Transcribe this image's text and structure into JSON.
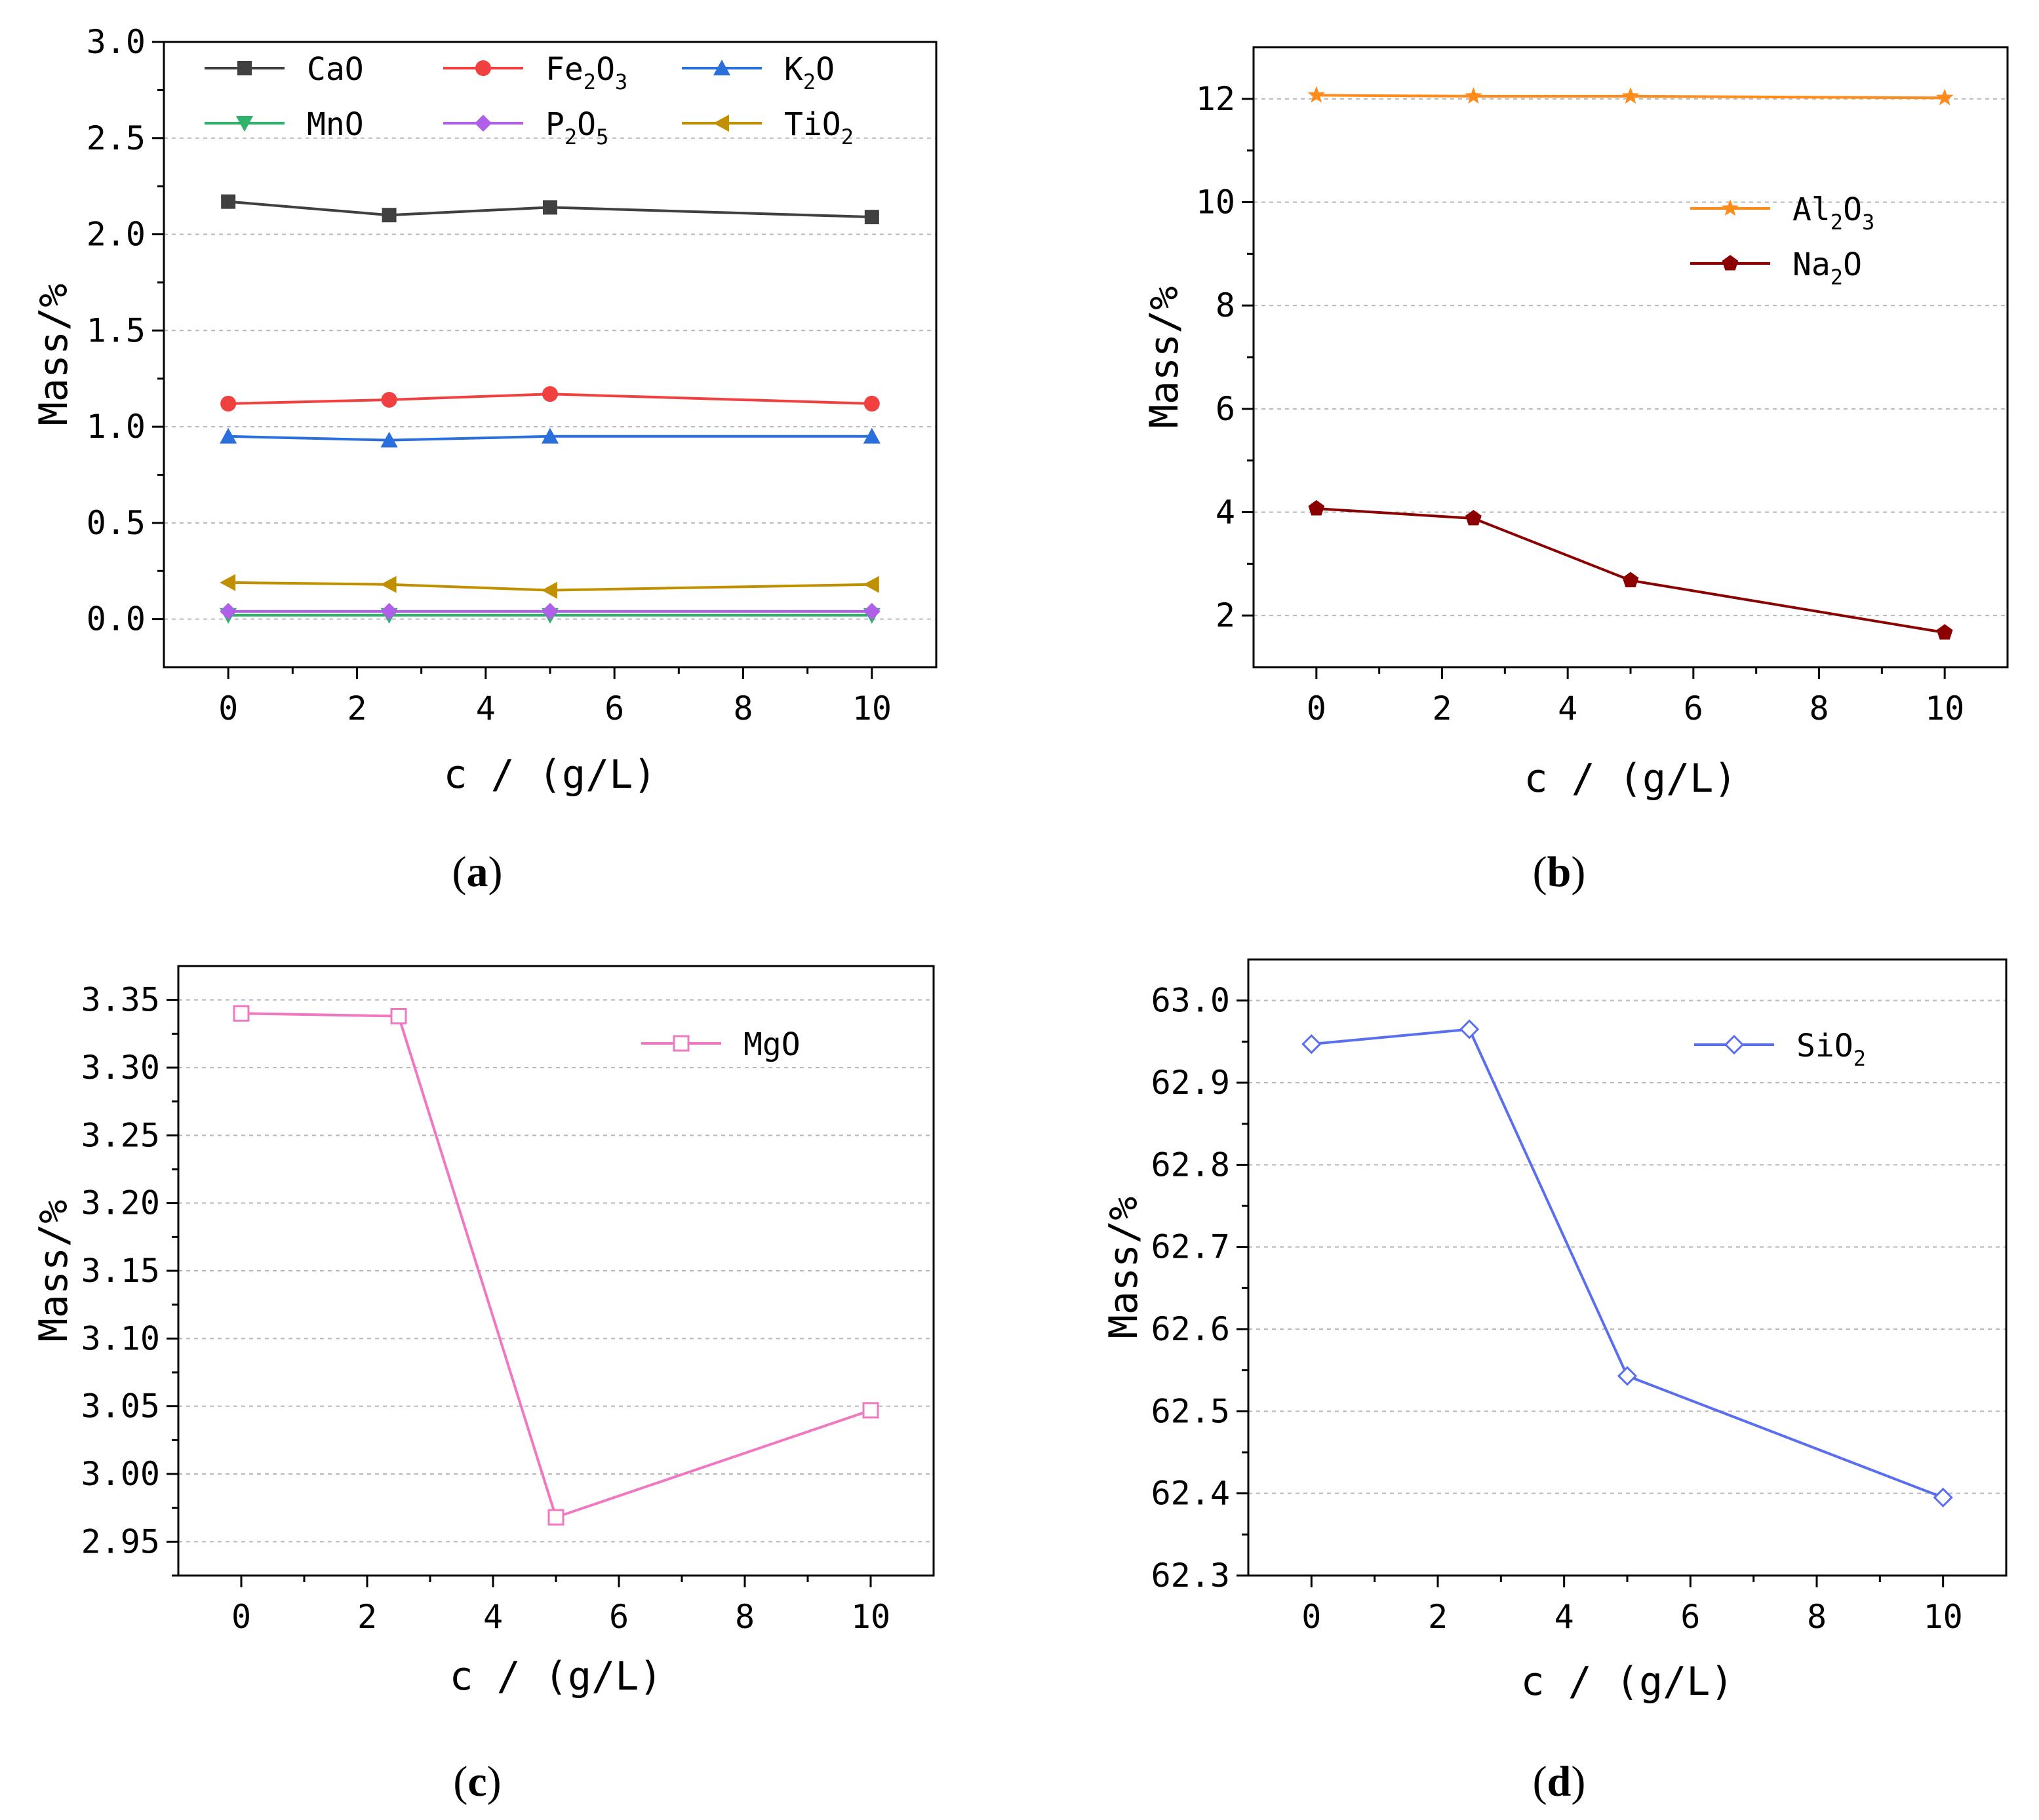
{
  "figure": {
    "panel_labels": [
      "a",
      "b",
      "c",
      "d"
    ]
  },
  "chart_data": [
    {
      "type": "line",
      "panel": "a",
      "xlabel": "c / (g/L)",
      "ylabel": "Mass/%",
      "xlim": [
        -1,
        11
      ],
      "ylim": [
        -0.25,
        3.0
      ],
      "xticks": [
        0,
        2,
        4,
        6,
        8,
        10
      ],
      "yticks": [
        0.0,
        0.5,
        1.0,
        1.5,
        2.0,
        2.5,
        3.0
      ],
      "ytick_labels": [
        "0.0",
        "0.5",
        "1.0",
        "1.5",
        "2.0",
        "2.5",
        "3.0"
      ],
      "legend_position": "top",
      "series": [
        {
          "name": "CaO",
          "label": "CaO",
          "sub": [],
          "color": "#404040",
          "marker": "square",
          "x": [
            0,
            2.5,
            5,
            10
          ],
          "values": [
            2.17,
            2.1,
            2.14,
            2.09
          ]
        },
        {
          "name": "Fe2O3",
          "label": "Fe2O3",
          "sub": [
            2,
            4
          ],
          "color": "#f04040",
          "marker": "circle",
          "x": [
            0,
            2.5,
            5,
            10
          ],
          "values": [
            1.12,
            1.14,
            1.17,
            1.12
          ]
        },
        {
          "name": "K2O",
          "label": "K2O",
          "sub": [
            1
          ],
          "color": "#2a6fdb",
          "marker": "triangle-up",
          "x": [
            0,
            2.5,
            5,
            10
          ],
          "values": [
            0.95,
            0.93,
            0.95,
            0.95
          ]
        },
        {
          "name": "MnO",
          "label": "MnO",
          "sub": [],
          "color": "#2eb36b",
          "marker": "triangle-down",
          "x": [
            0,
            2.5,
            5,
            10
          ],
          "values": [
            0.02,
            0.02,
            0.02,
            0.02
          ]
        },
        {
          "name": "P2O5",
          "label": "P2O5",
          "sub": [
            1,
            3
          ],
          "color": "#b060e8",
          "marker": "diamond",
          "x": [
            0,
            2.5,
            5,
            10
          ],
          "values": [
            0.04,
            0.04,
            0.04,
            0.04
          ]
        },
        {
          "name": "TiO2",
          "label": "TiO2",
          "sub": [
            3
          ],
          "color": "#c09000",
          "marker": "triangle-left",
          "x": [
            0,
            2.5,
            5,
            10
          ],
          "values": [
            0.19,
            0.18,
            0.15,
            0.18
          ]
        }
      ]
    },
    {
      "type": "line",
      "panel": "b",
      "xlabel": "c / (g/L)",
      "ylabel": "Mass/%",
      "xlim": [
        -1,
        11
      ],
      "ylim": [
        1,
        13
      ],
      "xticks": [
        0,
        2,
        4,
        6,
        8,
        10
      ],
      "yticks": [
        2,
        4,
        6,
        8,
        10,
        12
      ],
      "ytick_labels": [
        "2",
        "4",
        "6",
        "8",
        "10",
        "12"
      ],
      "legend_position": "top-right",
      "series": [
        {
          "name": "Al2O3",
          "label": "Al2O3",
          "sub": [
            2,
            4
          ],
          "color": "#ff8c1a",
          "marker": "star",
          "x": [
            0,
            2.5,
            5,
            10
          ],
          "values": [
            12.07,
            12.05,
            12.05,
            12.02
          ]
        },
        {
          "name": "Na2O",
          "label": "Na2O",
          "sub": [
            2
          ],
          "color": "#8b0000",
          "marker": "pentagon",
          "x": [
            0,
            2.5,
            5,
            10
          ],
          "values": [
            4.07,
            3.88,
            2.68,
            1.67
          ]
        }
      ]
    },
    {
      "type": "line",
      "panel": "c",
      "xlabel": "c / (g/L)",
      "ylabel": "Mass/%",
      "xlim": [
        -1,
        11
      ],
      "ylim": [
        2.925,
        3.375
      ],
      "xticks": [
        0,
        2,
        4,
        6,
        8,
        10
      ],
      "yticks": [
        2.95,
        3.0,
        3.05,
        3.1,
        3.15,
        3.2,
        3.25,
        3.3,
        3.35
      ],
      "ytick_labels": [
        "2.95",
        "3.00",
        "3.05",
        "3.10",
        "3.15",
        "3.20",
        "3.25",
        "3.30",
        "3.35"
      ],
      "legend_position": "top-right",
      "series": [
        {
          "name": "MgO",
          "label": "MgO",
          "sub": [],
          "color": "#f078c0",
          "marker": "square-open",
          "x": [
            0,
            2.5,
            5,
            10
          ],
          "values": [
            3.34,
            3.338,
            2.968,
            3.047
          ]
        }
      ]
    },
    {
      "type": "line",
      "panel": "d",
      "xlabel": "c / (g/L)",
      "ylabel": "Mass/%",
      "xlim": [
        -1,
        11
      ],
      "ylim": [
        62.3,
        63.05
      ],
      "xticks": [
        0,
        2,
        4,
        6,
        8,
        10
      ],
      "yticks": [
        62.3,
        62.4,
        62.5,
        62.6,
        62.7,
        62.8,
        62.9,
        63.0
      ],
      "ytick_labels": [
        "62.3",
        "62.4",
        "62.5",
        "62.6",
        "62.7",
        "62.8",
        "62.9",
        "63.0"
      ],
      "legend_position": "top-right",
      "series": [
        {
          "name": "SiO2",
          "label": "SiO2",
          "sub": [
            3
          ],
          "color": "#5a6ff0",
          "marker": "diamond-open",
          "x": [
            0,
            2.5,
            5,
            10
          ],
          "values": [
            62.947,
            62.965,
            62.543,
            62.395
          ]
        }
      ]
    }
  ]
}
